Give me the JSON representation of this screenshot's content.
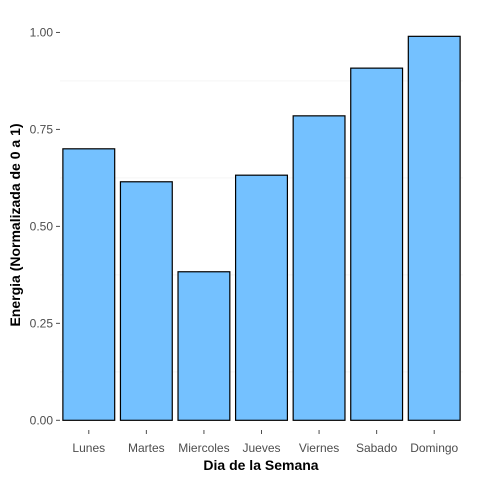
{
  "chart_data": {
    "type": "bar",
    "categories": [
      "Lunes",
      "Martes",
      "Miercoles",
      "Jueves",
      "Viernes",
      "Sabado",
      "Domingo"
    ],
    "values": [
      0.7,
      0.615,
      0.383,
      0.632,
      0.785,
      0.908,
      0.99
    ],
    "title": "",
    "xlabel": "Dia de la Semana",
    "ylabel": "Energia (Normalizada de 0 a 1)",
    "ylim": [
      -0.025,
      1.045
    ],
    "yticks": [
      0.0,
      0.25,
      0.5,
      0.75,
      1.0
    ],
    "ytick_labels": [
      "0.00",
      "0.25",
      "0.50",
      "0.75",
      "1.00"
    ],
    "grid": "faint",
    "legend": "none",
    "bar_color": "#74c1ff",
    "bar_edge_color": "#000000"
  }
}
